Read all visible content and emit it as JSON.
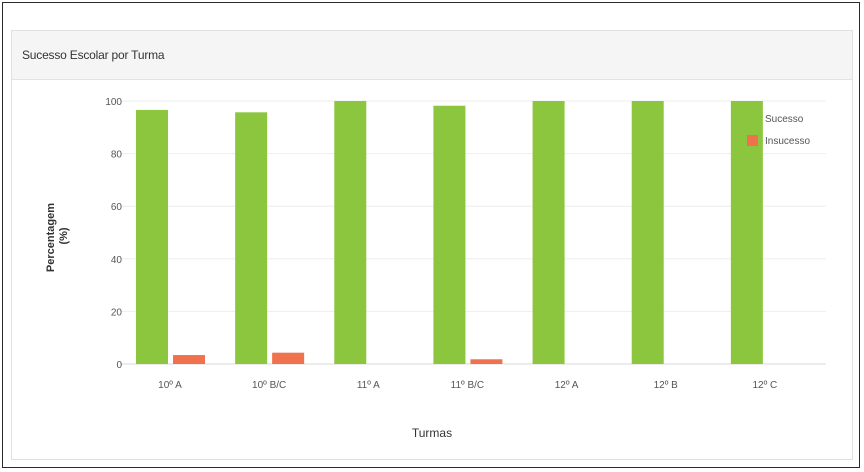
{
  "panel": {
    "title": "Sucesso Escolar por Turma"
  },
  "chart_data": {
    "type": "bar",
    "categories": [
      "10º A",
      "10º B/C",
      "11º A",
      "11º B/C",
      "12º A",
      "12º B",
      "12º C"
    ],
    "series": [
      {
        "name": "Sucesso",
        "values": [
          96.6,
          95.7,
          100,
          98.2,
          100,
          100,
          100
        ],
        "color": "#8cc63f"
      },
      {
        "name": "Insucesso",
        "values": [
          3.4,
          4.3,
          0,
          1.8,
          0,
          0,
          0
        ],
        "color": "#f0714d"
      }
    ],
    "yticks": [
      0,
      20,
      40,
      60,
      80,
      100
    ],
    "ylim": [
      0,
      100
    ],
    "xlabel": "Turmas",
    "ylabel": [
      "Percentagem",
      "(%)"
    ],
    "grid": true,
    "legend_position": "top-right"
  }
}
